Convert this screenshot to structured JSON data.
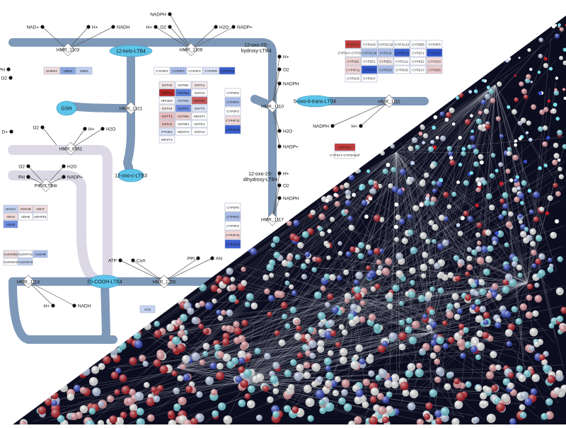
{
  "reactions": [
    {
      "id": "rx-hmr-1103",
      "label": "HMR_1103"
    },
    {
      "id": "rx-hmr-1109",
      "label": "HMR_1109"
    },
    {
      "id": "rx-hmr-1121",
      "label": "HMR_1121"
    },
    {
      "id": "rx-hmr-1110",
      "label": "HMR_1110"
    },
    {
      "id": "rx-hmr-1111",
      "label": "HMR_1111"
    },
    {
      "id": "rx-hmr-8561",
      "label": "HMR_8561"
    },
    {
      "id": "rx-hmr-1114",
      "label": "HMR_1114"
    },
    {
      "id": "rx-hmr-1250",
      "label": "HMR_1250"
    },
    {
      "id": "rx-hmr-1117",
      "label": "HMR_1117"
    },
    {
      "id": "rx-p450",
      "label": "P450LTB4r"
    }
  ],
  "compounds": [
    {
      "id": "cp-12-keto-ltb4",
      "label": "12-keto-LTB4"
    },
    {
      "id": "cp-12-oxo-hydroxy",
      "label": "12-oxo-20-hydroxy-LTB4"
    },
    {
      "id": "cp-gsh",
      "label": "GSH"
    },
    {
      "id": "cp-12-oxo-c-ltb3",
      "label": "12-oxo-c-LTB3"
    },
    {
      "id": "cp-5-oxo-trans",
      "label": "5-oxo-6-trans-LTB4"
    },
    {
      "id": "cp-12-oxo-dihydroxy",
      "label": "12-oxo-20-dihydroxy-LTB4"
    },
    {
      "id": "cp-20-cooh",
      "label": "20-COOH-LTB4"
    }
  ],
  "metabolites": [
    {
      "id": "m1",
      "label": "NAD+"
    },
    {
      "id": "m2",
      "label": "H+"
    },
    {
      "id": "m3",
      "label": "NADH"
    },
    {
      "id": "m4",
      "label": "NADPH"
    },
    {
      "id": "m5",
      "label": "H+"
    },
    {
      "id": "m6",
      "label": "O2"
    },
    {
      "id": "m7",
      "label": "H2O"
    },
    {
      "id": "m8",
      "label": "NADP+"
    },
    {
      "id": "m9",
      "label": "DPH"
    },
    {
      "id": "m10",
      "label": "O2"
    },
    {
      "id": "m11",
      "label": "H+"
    },
    {
      "id": "m12",
      "label": "O2"
    },
    {
      "id": "m13",
      "label": "NADPH"
    },
    {
      "id": "m14",
      "label": "H2O"
    },
    {
      "id": "m15",
      "label": "NADP+"
    },
    {
      "id": "m16",
      "label": "NADPH"
    },
    {
      "id": "m17",
      "label": "H+"
    },
    {
      "id": "m18",
      "label": "H+"
    },
    {
      "id": "m19",
      "label": "O2"
    },
    {
      "id": "m20",
      "label": "NADPH"
    },
    {
      "id": "m21",
      "label": "D+"
    },
    {
      "id": "m22",
      "label": "O2"
    },
    {
      "id": "m23",
      "label": "H+"
    },
    {
      "id": "m24",
      "label": "H2O"
    },
    {
      "id": "m25",
      "label": "O2"
    },
    {
      "id": "m26",
      "label": "H2O"
    },
    {
      "id": "m27",
      "label": "PH"
    },
    {
      "id": "m28",
      "label": "NADP+"
    },
    {
      "id": "m29",
      "label": "ATP"
    },
    {
      "id": "m30",
      "label": "CoA"
    },
    {
      "id": "m31",
      "label": "PPi"
    },
    {
      "id": "m32",
      "label": "AN"
    },
    {
      "id": "m33",
      "label": "H+"
    },
    {
      "id": "m34",
      "label": "NADH"
    }
  ],
  "gene_tables": {
    "dhrs": {
      "cells": [
        "DHRS4",
        "CBR3",
        "CBR1"
      ],
      "colors": [
        "#f1dede",
        "#8aa7e0",
        "#c2d0f0"
      ]
    },
    "cyp_top": {
      "cells": [
        "CYP4F2",
        "CYP4F3",
        "CYP4F2",
        "CYP4F8",
        "CYP4F22"
      ],
      "colors": [
        "#ffffff",
        "#a9bde8",
        "#ffffff",
        "#dce4f6",
        "#3b5fcf"
      ]
    },
    "gst": {
      "cells": [
        "GSTA5",
        "GSTM1",
        "GSTA1",
        "GSTZ1",
        "GSTM3",
        "GSTA4",
        "HPGDS",
        "GSTM2",
        "GSTO1",
        "GSTA3",
        "GSTP1",
        "GSTT2",
        "GSTT1",
        "GSTM5",
        "MGST1",
        "GSTA2",
        "GSTM4",
        "GSTK1",
        "PTGES",
        "MGST3",
        "GSTA4",
        "MGST2"
      ],
      "colors": [
        "#f3e6e6",
        "#ffffff",
        "#f3e6e6",
        "#b22424",
        "#5a7ed8",
        "#ffffff",
        "#ffffff",
        "#c6d3f1",
        "#c85a5a",
        "#f6eeee",
        "#6e8de0",
        "#dfe6f7",
        "#e8bcbc",
        "#f0d0d0",
        "#ffffff",
        "#e9c4c4",
        "#ffffff",
        "#ffffff",
        "#dce4f6",
        "#ffffff",
        "#ffffff",
        "#ffffff"
      ]
    },
    "cyp_right": {
      "cells": [
        "CYP4F8",
        "CYP4F2",
        "CYP4F3",
        "CYP4F11",
        "CYP4F22"
      ],
      "colors": [
        "#ffffff",
        "#a9bde8",
        "#ffffff",
        "#f3d8d8",
        "#3b5fcf"
      ]
    },
    "cyp_right2": {
      "cells": [
        "CYP4F8",
        "CYP4F2",
        "CYP4F3",
        "CYP4F11",
        "CYP4F22"
      ],
      "colors": [
        "#ffffff",
        "#a9bde8",
        "#ffffff",
        "#f3d8d8",
        "#3b5fcf"
      ]
    },
    "cyp_block": {
      "cells": [
        "CYP1A1",
        "CYP2A6",
        "CYP2C19",
        "CYP2A13",
        "CYP2B6",
        "CYP4F8",
        "CYP3A7-CYP3A51P",
        "CYP2C18",
        "CYP2J2",
        "CYP4F12",
        "CYP2F1",
        "CYP3A4",
        "CYP1B1",
        "CYP2E1",
        "CYP2E1",
        "CYP1A2",
        "CYP4Z1",
        "CYP2C8",
        "CYP4F11",
        "CYP4F3",
        "CYP2C9",
        "CYP3A5",
        "CYP2A7",
        "CYP2D6",
        "CYP3A5",
        "CYP3A7"
      ],
      "colors": [
        "#c23b3b",
        "#ffffff",
        "#ffffff",
        "#ffffff",
        "#ffffff",
        "#ffffff",
        "#ffffff",
        "#a9bde8",
        "#a9bde8",
        "#3b5fcf",
        "#ffffff",
        "#2f55cc",
        "#f2d6d6",
        "#ffffff",
        "#f8eded",
        "#ffffff",
        "#ffffff",
        "#f5dede",
        "#f3d8d8",
        "#2f55cc",
        "#a9bde8",
        "#ffffff",
        "#ffffff",
        "#f0cccc",
        "#ffffff",
        "#ffffff"
      ]
    },
    "cyp_mid": {
      "cells": [
        "CYP1A1",
        "CYP3A7-CYP3A51P"
      ],
      "colors": [
        "#c23b3b",
        "#ffffff"
      ]
    },
    "adh_left": {
      "cells": [
        "ADH1C",
        "ADH1B",
        "ADH7",
        "ADH4",
        "ADH6",
        "ADHFE1",
        "ADH5"
      ],
      "colors": [
        "#c6d3f1",
        "#f1dede",
        "#f1dede",
        "#f3dede",
        "#ffffff",
        "#ffffff",
        "#6e8de0"
      ]
    },
    "aldh": {
      "cells": [
        "ALDH3B1",
        "ALDH7A1",
        "ALDH9",
        "ALDH3A2",
        "ALDH3A3"
      ],
      "colors": [
        "#f1dede",
        "#ffffff",
        "#a9bde8",
        "#ffffff",
        "#c6d3f1"
      ]
    },
    "acs": {
      "cells": [
        "ACS"
      ],
      "colors": [
        "#c6d3f1"
      ]
    }
  },
  "colors": {
    "pathway": "#7e98b8",
    "pathway_light": "#dcd8e6",
    "compound": "#5ec5ea",
    "network_bg": "#0c0d1f",
    "node_red": "#c0212a",
    "node_pink": "#f0a3aa",
    "node_cyan": "#7fe0ee",
    "node_white": "#ffffff",
    "node_blue": "#3a4fd0"
  }
}
